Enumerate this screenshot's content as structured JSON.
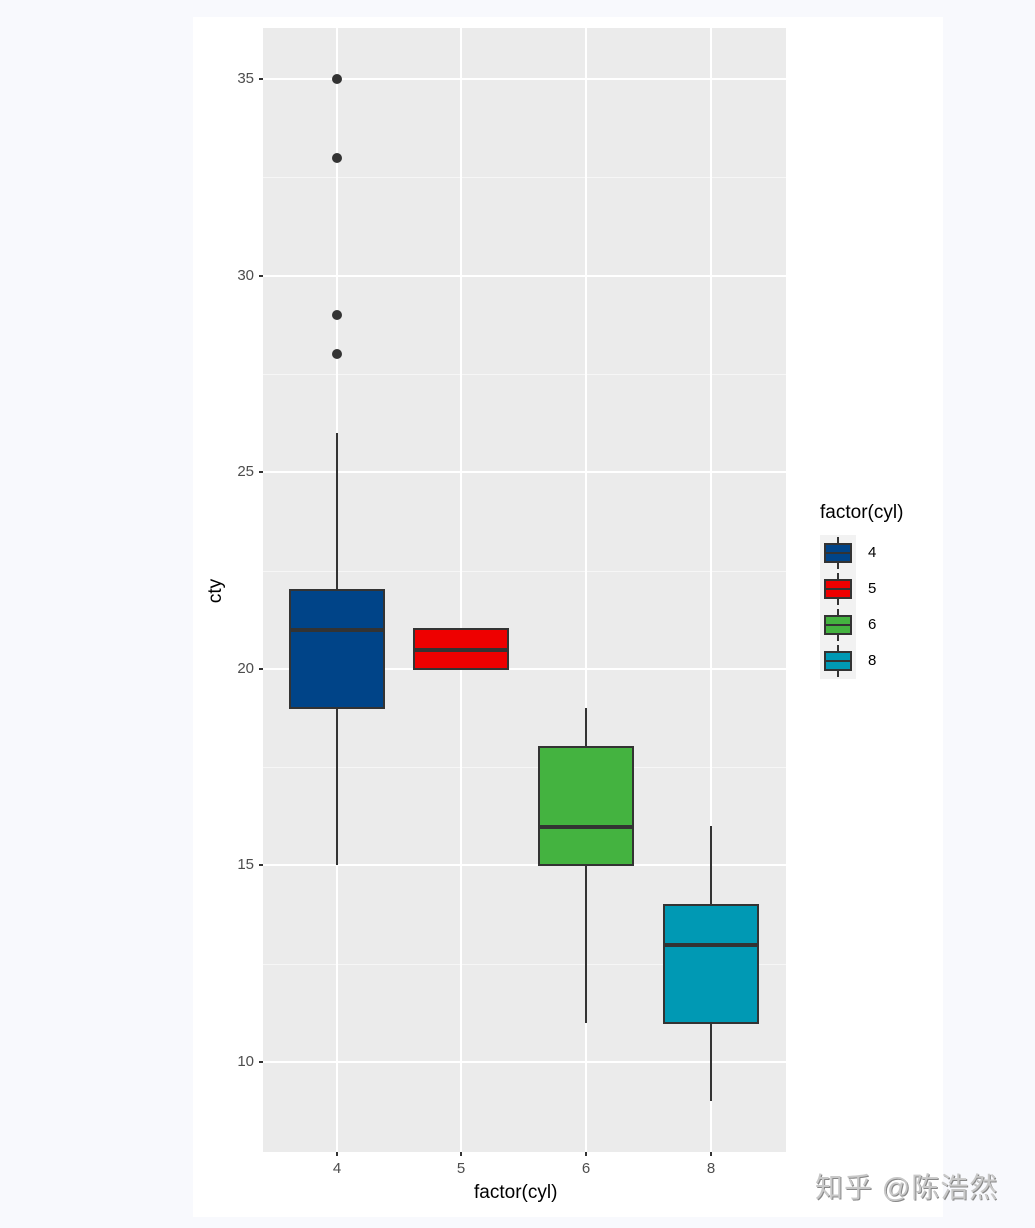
{
  "chart_data": {
    "type": "boxplot",
    "title": "",
    "xlabel": "factor(cyl)",
    "ylabel": "cty",
    "categories": [
      "4",
      "5",
      "6",
      "8"
    ],
    "ylim": [
      7.8,
      36.3
    ],
    "y_ticks": [
      10,
      15,
      20,
      25,
      30,
      35
    ],
    "grid": true,
    "legend": {
      "title": "factor(cyl)",
      "position": "right",
      "entries": [
        "4",
        "5",
        "6",
        "8"
      ]
    },
    "series": [
      {
        "name": "4",
        "color": "#004488",
        "min": 15,
        "q1": 19,
        "median": 21,
        "q3": 22,
        "max": 26,
        "outliers": [
          28,
          29,
          33,
          35
        ]
      },
      {
        "name": "5",
        "color": "#ee0000",
        "min": 20,
        "q1": 20,
        "median": 20.5,
        "q3": 21,
        "max": 21,
        "outliers": []
      },
      {
        "name": "6",
        "color": "#44b340",
        "min": 11,
        "q1": 15,
        "median": 16,
        "q3": 18,
        "max": 19,
        "outliers": []
      },
      {
        "name": "8",
        "color": "#0099b4",
        "min": 9,
        "q1": 11,
        "median": 13,
        "q3": 14,
        "max": 16,
        "outliers": []
      }
    ]
  },
  "axes": {
    "x_title": "factor(cyl)",
    "y_title": "cty",
    "x_labels": [
      "4",
      "5",
      "6",
      "8"
    ],
    "y_labels": [
      "10",
      "15",
      "20",
      "25",
      "30",
      "35"
    ]
  },
  "legend": {
    "title": "factor(cyl)",
    "items": [
      {
        "label": "4",
        "color": "#004488"
      },
      {
        "label": "5",
        "color": "#ee0000"
      },
      {
        "label": "6",
        "color": "#44b340"
      },
      {
        "label": "8",
        "color": "#0099b4"
      }
    ]
  },
  "watermark": "知乎 @陈浩然"
}
